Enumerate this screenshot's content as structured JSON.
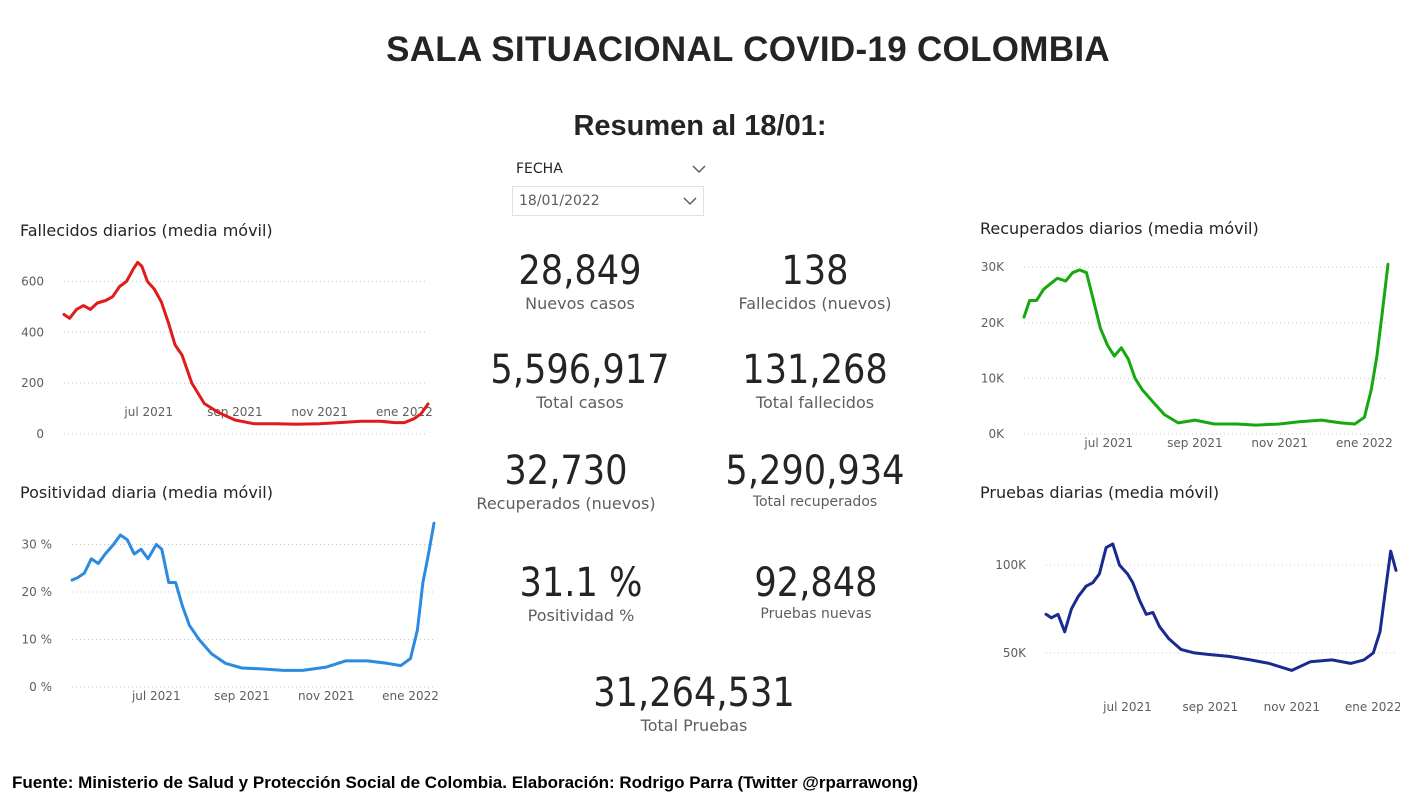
{
  "header": {
    "title": "SALA SITUACIONAL COVID-19 COLOMBIA",
    "subtitle": "Resumen al 18/01:"
  },
  "slicer": {
    "label": "FECHA",
    "value": "18/01/2022"
  },
  "kpis": [
    {
      "value": "28,849",
      "label": "Nuevos casos"
    },
    {
      "value": "138",
      "label": "Fallecidos (nuevos)"
    },
    {
      "value": "5,596,917",
      "label": "Total casos"
    },
    {
      "value": "131,268",
      "label": "Total fallecidos"
    },
    {
      "value": "32,730",
      "label": "Recuperados (nuevos)"
    },
    {
      "value": "5,290,934",
      "label": "Total recuperados"
    },
    {
      "value": "31.1 %",
      "label": "Positividad %"
    },
    {
      "value": "92,848",
      "label": "Pruebas nuevas"
    },
    {
      "value": "31,264,531",
      "label": "Total Pruebas"
    }
  ],
  "footer": "Fuente: Ministerio de Salud y Protección Social de Colombia. Elaboración: Rodrigo Parra (Twitter @rparrawong)",
  "chart_data": [
    {
      "type": "line",
      "title": "Fallecidos diarios (media móvil)",
      "color": "#e01b1b",
      "x_ticks": [
        "jul 2021",
        "sep 2021",
        "nov 2021",
        "ene 2022"
      ],
      "y_ticks": [
        "600",
        "400",
        "200",
        "0"
      ],
      "y_tick_values": [
        600,
        400,
        200,
        0
      ],
      "ylim": [
        0,
        700
      ],
      "x_range": [
        "2021-05-01",
        "2022-01-18"
      ],
      "x": [
        "2021-05-01",
        "2021-05-05",
        "2021-05-10",
        "2021-05-15",
        "2021-05-20",
        "2021-05-25",
        "2021-05-31",
        "2021-06-05",
        "2021-06-10",
        "2021-06-15",
        "2021-06-20",
        "2021-06-23",
        "2021-06-26",
        "2021-06-30",
        "2021-07-05",
        "2021-07-10",
        "2021-07-15",
        "2021-07-20",
        "2021-07-25",
        "2021-08-01",
        "2021-08-10",
        "2021-08-20",
        "2021-09-01",
        "2021-09-15",
        "2021-10-01",
        "2021-10-15",
        "2021-11-01",
        "2021-11-15",
        "2021-12-01",
        "2021-12-15",
        "2021-12-25",
        "2022-01-01",
        "2022-01-08",
        "2022-01-13",
        "2022-01-18"
      ],
      "y": [
        470,
        455,
        490,
        505,
        490,
        515,
        525,
        540,
        580,
        600,
        650,
        675,
        660,
        600,
        570,
        520,
        440,
        350,
        310,
        200,
        120,
        85,
        55,
        40,
        40,
        38,
        40,
        45,
        50,
        50,
        45,
        45,
        60,
        80,
        118
      ]
    },
    {
      "type": "line",
      "title": "Recuperados diarios (media móvil)",
      "color": "#16a80f",
      "x_ticks": [
        "jul 2021",
        "sep 2021",
        "nov 2021",
        "ene 2022"
      ],
      "y_ticks": [
        "30K",
        "20K",
        "10K",
        "0K"
      ],
      "y_tick_values": [
        30000,
        20000,
        10000,
        0
      ],
      "ylim": [
        0,
        32000
      ],
      "x_range": [
        "2021-05-01",
        "2022-01-18"
      ],
      "x": [
        "2021-05-01",
        "2021-05-05",
        "2021-05-10",
        "2021-05-15",
        "2021-05-20",
        "2021-05-25",
        "2021-05-31",
        "2021-06-05",
        "2021-06-10",
        "2021-06-15",
        "2021-06-20",
        "2021-06-25",
        "2021-06-30",
        "2021-07-05",
        "2021-07-10",
        "2021-07-15",
        "2021-07-20",
        "2021-07-25",
        "2021-08-01",
        "2021-08-10",
        "2021-08-20",
        "2021-09-01",
        "2021-09-15",
        "2021-10-01",
        "2021-10-15",
        "2021-11-01",
        "2021-11-15",
        "2021-12-01",
        "2021-12-15",
        "2021-12-25",
        "2022-01-01",
        "2022-01-06",
        "2022-01-10",
        "2022-01-14",
        "2022-01-18"
      ],
      "y": [
        21000,
        24000,
        24000,
        26000,
        27000,
        28000,
        27500,
        29000,
        29500,
        29000,
        24000,
        19000,
        16000,
        14000,
        15500,
        13500,
        10000,
        8000,
        6000,
        3500,
        2000,
        2500,
        1800,
        1800,
        1600,
        1800,
        2200,
        2500,
        2000,
        1800,
        3000,
        8000,
        14000,
        22000,
        30500
      ]
    },
    {
      "type": "line",
      "title": "Positividad diaria (media móvil)",
      "color": "#2b8be0",
      "x_ticks": [
        "jul 2021",
        "sep 2021",
        "nov 2021",
        "ene 2022"
      ],
      "y_ticks": [
        "30 %",
        "20 %",
        "10 %",
        "0 %"
      ],
      "y_tick_values": [
        30,
        20,
        10,
        0
      ],
      "ylim": [
        0,
        36
      ],
      "x_range": [
        "2021-05-01",
        "2022-01-18"
      ],
      "x": [
        "2021-05-01",
        "2021-05-05",
        "2021-05-10",
        "2021-05-15",
        "2021-05-20",
        "2021-05-25",
        "2021-05-31",
        "2021-06-05",
        "2021-06-10",
        "2021-06-15",
        "2021-06-20",
        "2021-06-25",
        "2021-07-01",
        "2021-07-05",
        "2021-07-10",
        "2021-07-15",
        "2021-07-20",
        "2021-07-25",
        "2021-08-01",
        "2021-08-10",
        "2021-08-20",
        "2021-09-01",
        "2021-09-15",
        "2021-10-01",
        "2021-10-15",
        "2021-11-01",
        "2021-11-15",
        "2021-12-01",
        "2021-12-15",
        "2021-12-25",
        "2022-01-01",
        "2022-01-06",
        "2022-01-10",
        "2022-01-14",
        "2022-01-18"
      ],
      "y": [
        22.5,
        23,
        24,
        27,
        26,
        28,
        30,
        32,
        31,
        28,
        29,
        27,
        30,
        29,
        22,
        22,
        17,
        13,
        10,
        7,
        5,
        4,
        3.8,
        3.5,
        3.5,
        4.2,
        5.5,
        5.5,
        5,
        4.5,
        6,
        12,
        22,
        28,
        34.5
      ]
    },
    {
      "type": "line",
      "title": "Pruebas diarias (media móvil)",
      "color": "#1a2a8f",
      "x_ticks": [
        "jul 2021",
        "sep 2021",
        "nov 2021",
        "ene 2022"
      ],
      "y_ticks": [
        "100K",
        "50K"
      ],
      "y_tick_values": [
        100000,
        50000
      ],
      "ylim": [
        30000,
        120000
      ],
      "x_range": [
        "2021-05-01",
        "2022-01-18"
      ],
      "x": [
        "2021-05-01",
        "2021-05-05",
        "2021-05-10",
        "2021-05-15",
        "2021-05-20",
        "2021-05-25",
        "2021-05-31",
        "2021-06-05",
        "2021-06-10",
        "2021-06-15",
        "2021-06-20",
        "2021-06-25",
        "2021-07-01",
        "2021-07-05",
        "2021-07-10",
        "2021-07-15",
        "2021-07-20",
        "2021-07-25",
        "2021-08-01",
        "2021-08-10",
        "2021-08-20",
        "2021-09-01",
        "2021-09-15",
        "2021-10-01",
        "2021-10-15",
        "2021-11-01",
        "2021-11-15",
        "2021-12-01",
        "2021-12-15",
        "2021-12-25",
        "2022-01-01",
        "2022-01-06",
        "2022-01-10",
        "2022-01-14",
        "2022-01-18"
      ],
      "y": [
        72000,
        70000,
        72000,
        62000,
        75000,
        82000,
        88000,
        90000,
        95000,
        110000,
        112000,
        100000,
        95000,
        90000,
        80000,
        72000,
        73000,
        65000,
        58000,
        52000,
        50000,
        49000,
        48000,
        46000,
        44000,
        40000,
        45000,
        46000,
        44000,
        46000,
        50000,
        62000,
        85000,
        108000,
        97000
      ]
    }
  ]
}
